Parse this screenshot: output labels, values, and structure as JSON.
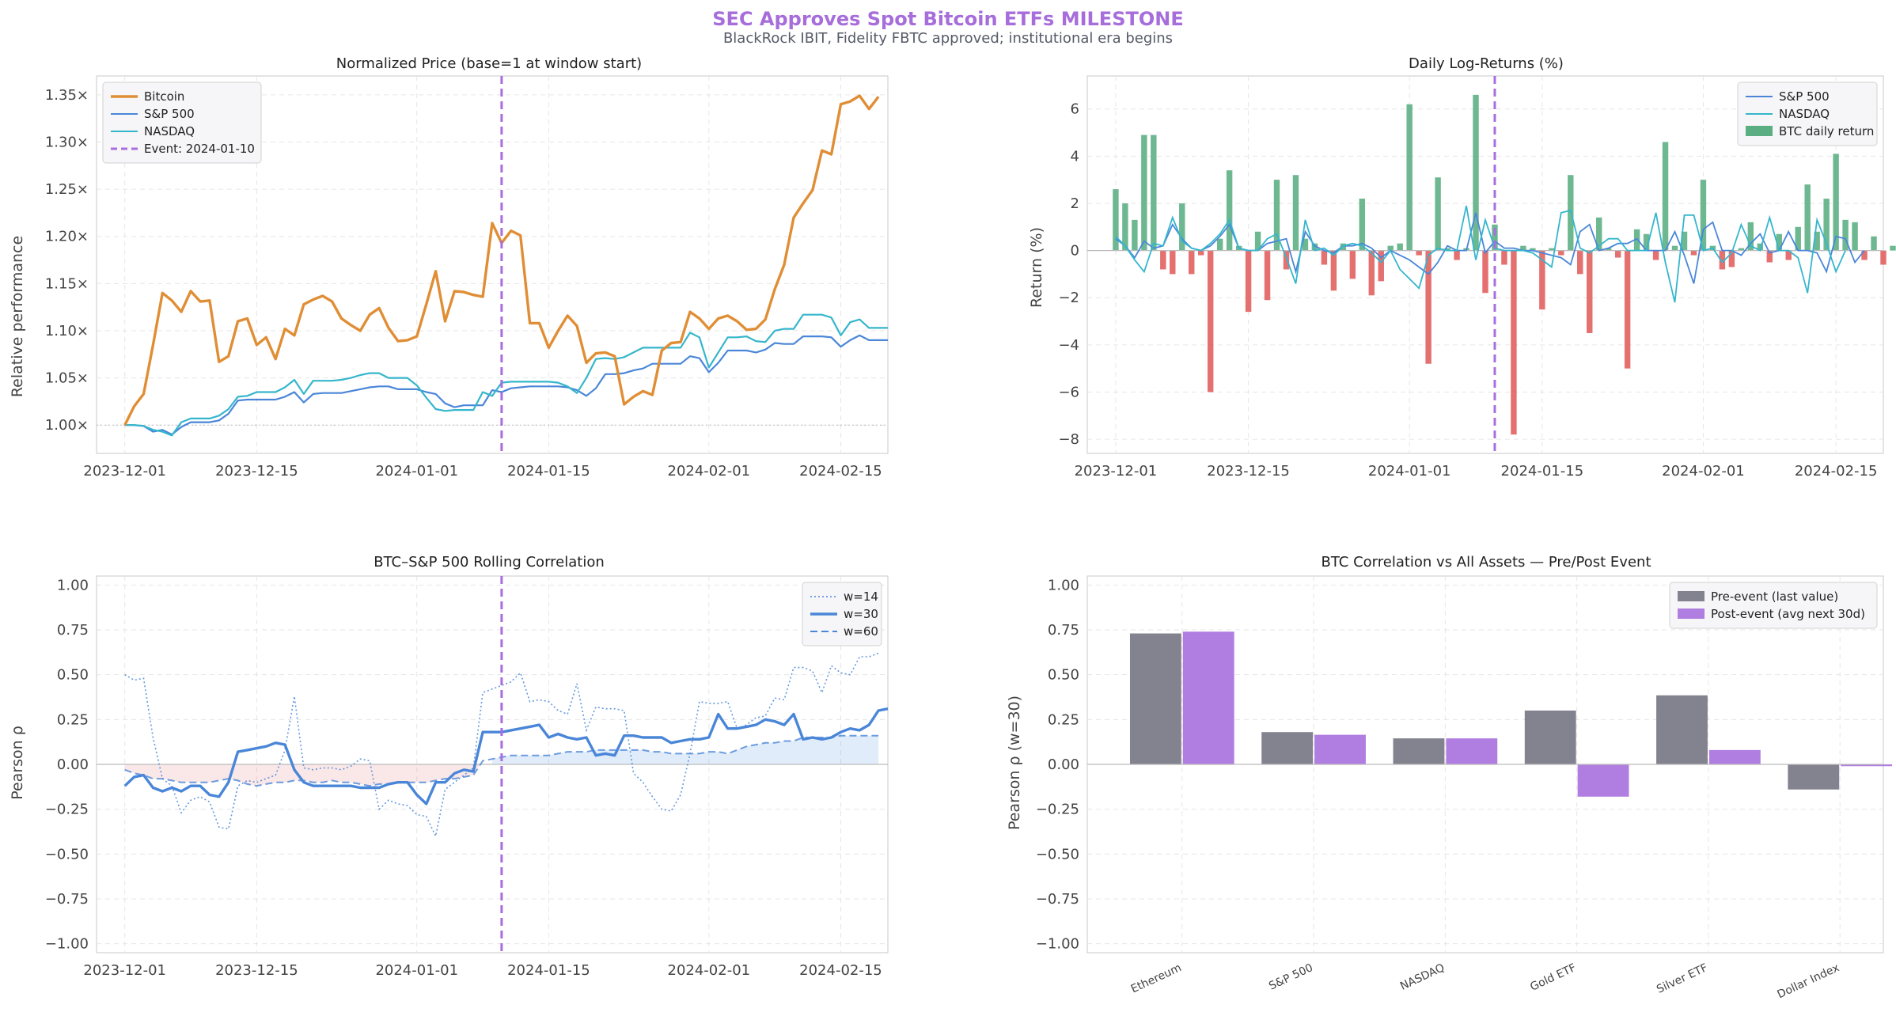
{
  "header": {
    "title": "SEC Approves Spot Bitcoin ETFs  MILESTONE",
    "subtitle": "BlackRock IBIT, Fidelity FBTC approved; institutional era begins"
  },
  "colors": {
    "bitcoin": "#e08e35",
    "sp500": "#4a86d8",
    "nasdaq": "#35b6cc",
    "event": "#a86ee0",
    "positive": "#5aae82",
    "negative": "#e05c5c",
    "pre": "#83828f",
    "post": "#b07ee0",
    "grid": "#e6e6e6",
    "zero": "#bbbbbb"
  },
  "chart_data": [
    {
      "type": "line",
      "title": "Normalized Price (base=1 at window start)",
      "xlabel": "",
      "ylabel": "Relative performance",
      "x_start": "2023-12-01",
      "x_ticks": [
        "2023-12-01",
        "2023-12-15",
        "2024-01-01",
        "2024-01-15",
        "2024-02-01",
        "2024-02-15"
      ],
      "y_ticks": [
        "1.00×",
        "1.05×",
        "1.10×",
        "1.15×",
        "1.20×",
        "1.25×",
        "1.30×",
        "1.35×"
      ],
      "ylim": [
        0.97,
        1.37
      ],
      "grid": true,
      "legend_position": "top-left",
      "event": {
        "date": "2024-01-10",
        "label": "Event: 2024-01-10"
      },
      "series": [
        {
          "name": "Bitcoin",
          "values": [
            1.0,
            1.02,
            1.033,
            1.085,
            1.14,
            1.132,
            1.12,
            1.142,
            1.131,
            1.132,
            1.067,
            1.073,
            1.11,
            1.113,
            1.085,
            1.093,
            1.07,
            1.102,
            1.095,
            1.128,
            1.133,
            1.137,
            1.131,
            1.113,
            1.106,
            1.1,
            1.117,
            1.124,
            1.103,
            1.089,
            1.09,
            1.094,
            1.128,
            1.163,
            1.11,
            1.142,
            1.141,
            1.138,
            1.136,
            1.214,
            1.193,
            1.206,
            1.201,
            1.108,
            1.108,
            1.082,
            1.1,
            1.116,
            1.105,
            1.066,
            1.076,
            1.077,
            1.073,
            1.022,
            1.03,
            1.036,
            1.032,
            1.079,
            1.087,
            1.088,
            1.12,
            1.113,
            1.102,
            1.113,
            1.116,
            1.11,
            1.101,
            1.102,
            1.112,
            1.144,
            1.17,
            1.22,
            1.235,
            1.249,
            1.291,
            1.287,
            1.34,
            1.343,
            1.349,
            1.335,
            1.348
          ]
        },
        {
          "name": "S&P 500",
          "values": [
            1.0,
            1.0,
            0.999,
            0.993,
            0.995,
            0.99,
            0.998,
            1.003,
            1.003,
            1.003,
            1.005,
            1.012,
            1.026,
            1.027,
            1.027,
            1.027,
            1.027,
            1.03,
            1.035,
            1.024,
            1.033,
            1.034,
            1.034,
            1.034,
            1.036,
            1.038,
            1.04,
            1.041,
            1.041,
            1.038,
            1.038,
            1.038,
            1.035,
            1.033,
            1.023,
            1.019,
            1.021,
            1.021,
            1.021,
            1.037,
            1.035,
            1.039,
            1.04,
            1.041,
            1.041,
            1.041,
            1.041,
            1.04,
            1.037,
            1.031,
            1.039,
            1.054,
            1.054,
            1.055,
            1.058,
            1.06,
            1.065,
            1.065,
            1.065,
            1.065,
            1.073,
            1.071,
            1.056,
            1.066,
            1.079,
            1.079,
            1.079,
            1.077,
            1.08,
            1.087,
            1.086,
            1.086,
            1.094,
            1.094,
            1.094,
            1.093,
            1.083,
            1.09,
            1.095,
            1.09,
            1.09,
            1.09
          ]
        },
        {
          "name": "NASDAQ",
          "values": [
            1.0,
            1.0,
            0.999,
            0.995,
            0.993,
            0.989,
            1.003,
            1.007,
            1.007,
            1.007,
            1.01,
            1.017,
            1.03,
            1.031,
            1.035,
            1.035,
            1.035,
            1.04,
            1.048,
            1.033,
            1.047,
            1.047,
            1.047,
            1.048,
            1.05,
            1.053,
            1.055,
            1.055,
            1.05,
            1.05,
            1.05,
            1.042,
            1.029,
            1.017,
            1.015,
            1.016,
            1.016,
            1.016,
            1.035,
            1.031,
            1.045,
            1.046,
            1.046,
            1.046,
            1.046,
            1.046,
            1.045,
            1.041,
            1.034,
            1.05,
            1.07,
            1.071,
            1.07,
            1.072,
            1.077,
            1.082,
            1.082,
            1.082,
            1.082,
            1.082,
            1.098,
            1.093,
            1.061,
            1.077,
            1.093,
            1.093,
            1.094,
            1.089,
            1.088,
            1.1,
            1.102,
            1.102,
            1.117,
            1.117,
            1.117,
            1.114,
            1.095,
            1.109,
            1.112,
            1.103,
            1.103,
            1.103
          ]
        }
      ]
    },
    {
      "type": "bar",
      "title": "Daily Log-Returns (%)",
      "xlabel": "",
      "ylabel": "Return (%)",
      "x_start": "2023-12-01",
      "x_ticks": [
        "2023-12-01",
        "2023-12-15",
        "2024-01-01",
        "2024-01-15",
        "2024-02-01",
        "2024-02-15"
      ],
      "y_ticks": [
        "−8",
        "−6",
        "−4",
        "−2",
        "0",
        "2",
        "4",
        "6"
      ],
      "ylim": [
        -8.6,
        7.4
      ],
      "grid": true,
      "legend_position": "top-right",
      "event": {
        "date": "2024-01-10"
      },
      "series": [
        {
          "name": "BTC daily return",
          "values": [
            2.6,
            2.0,
            1.3,
            4.9,
            4.9,
            -0.8,
            -1.0,
            2.0,
            -1.0,
            -0.2,
            -6.0,
            0.5,
            3.4,
            0.2,
            -2.6,
            0.8,
            -2.1,
            3.0,
            -0.8,
            3.2,
            0.5,
            0.3,
            -0.6,
            -1.7,
            0.3,
            -1.2,
            2.2,
            -1.9,
            -1.3,
            0.2,
            0.3,
            6.2,
            -0.2,
            -4.8,
            3.1,
            0.1,
            -0.4,
            0.1,
            6.6,
            -1.8,
            1.1,
            -0.6,
            -7.8,
            0.2,
            0.1,
            -2.5,
            0.1,
            -0.2,
            3.2,
            -1.0,
            -3.5,
            1.4,
            0.1,
            -0.3,
            -5.0,
            0.9,
            0.7,
            -0.4,
            4.6,
            0.2,
            0.8,
            -0.2,
            3.0,
            0.2,
            -0.8,
            -0.7,
            0.1,
            1.2,
            0.3,
            -0.5,
            0.7,
            -0.4,
            1.0,
            2.8,
            0.8,
            2.2,
            4.1,
            1.3,
            1.2,
            -0.4,
            0.6,
            -0.6,
            0.2,
            0.9
          ]
        },
        {
          "name": "S&P 500",
          "values": [
            0.5,
            0.2,
            -0.3,
            0.4,
            0.1,
            0.2,
            1.1,
            0.5,
            0.1,
            0.0,
            0.2,
            0.6,
            1.1,
            0.1,
            0.0,
            0.0,
            0.3,
            0.4,
            0.5,
            -0.9,
            0.8,
            0.2,
            0.0,
            -0.1,
            0.2,
            0.2,
            0.3,
            0.1,
            -0.3,
            0.0,
            -0.2,
            -0.4,
            -0.7,
            -1.0,
            -0.5,
            0.2,
            0.0,
            0.0,
            1.6,
            -0.1,
            0.4,
            0.1,
            0.1,
            0.0,
            0.0,
            -0.1,
            -0.2,
            -0.3,
            -0.6,
            0.8,
            1.1,
            0.0,
            0.1,
            0.3,
            0.3,
            0.5,
            0.0,
            0.0,
            0.0,
            0.8,
            -0.2,
            -1.4,
            0.9,
            1.2,
            0.0,
            0.0,
            -0.2,
            0.3,
            0.7,
            -0.1,
            0.0,
            0.8,
            0.0,
            0.0,
            -0.1,
            -0.9,
            0.6,
            0.5,
            -0.5,
            0.0
          ]
        },
        {
          "name": "NASDAQ",
          "values": [
            0.6,
            0.2,
            -0.4,
            -0.9,
            0.3,
            0.2,
            1.4,
            0.4,
            0.1,
            0.0,
            0.3,
            0.7,
            1.3,
            0.1,
            0.0,
            0.0,
            0.5,
            0.7,
            -0.3,
            -1.4,
            1.3,
            0.0,
            0.1,
            -0.2,
            0.2,
            0.3,
            0.2,
            -0.1,
            -0.5,
            0.0,
            -0.8,
            -1.2,
            -1.6,
            -0.2,
            0.1,
            0.0,
            0.0,
            1.9,
            -0.4,
            1.3,
            0.1,
            0.0,
            0.0,
            0.0,
            -0.1,
            -0.4,
            -0.7,
            1.6,
            1.7,
            0.1,
            -0.1,
            0.2,
            0.5,
            0.5,
            0.0,
            0.0,
            0.0,
            1.6,
            -0.5,
            -2.2,
            1.5,
            1.5,
            0.0,
            0.1,
            -0.5,
            -0.1,
            1.1,
            0.2,
            0.0,
            1.4,
            0.0,
            0.0,
            -0.3,
            -1.8,
            1.3,
            0.3,
            -0.9,
            0.0
          ]
        }
      ]
    },
    {
      "type": "line",
      "title": "BTC–S&P 500 Rolling Correlation",
      "xlabel": "",
      "ylabel": "Pearson ρ",
      "x_start": "2023-12-01",
      "x_ticks": [
        "2023-12-01",
        "2023-12-15",
        "2024-01-01",
        "2024-01-15",
        "2024-02-01",
        "2024-02-15"
      ],
      "y_ticks": [
        "−1.00",
        "−0.75",
        "−0.50",
        "−0.25",
        "0.00",
        "0.25",
        "0.50",
        "0.75",
        "1.00"
      ],
      "ylim": [
        -1.05,
        1.05
      ],
      "grid": true,
      "legend_position": "top-right",
      "event": {
        "date": "2024-01-10"
      },
      "series": [
        {
          "name": "w=14",
          "values": [
            0.5,
            0.47,
            0.48,
            0.15,
            -0.08,
            -0.12,
            -0.27,
            -0.2,
            -0.18,
            -0.21,
            -0.35,
            -0.36,
            -0.12,
            -0.09,
            -0.1,
            -0.08,
            -0.06,
            0.08,
            0.38,
            -0.02,
            -0.03,
            -0.02,
            -0.02,
            -0.03,
            -0.01,
            0.03,
            0.02,
            -0.25,
            -0.2,
            -0.22,
            -0.23,
            -0.28,
            -0.29,
            -0.4,
            -0.14,
            -0.1,
            -0.06,
            -0.02,
            0.4,
            0.42,
            0.44,
            0.46,
            0.51,
            0.35,
            0.36,
            0.35,
            0.3,
            0.28,
            0.45,
            0.19,
            0.32,
            0.31,
            0.31,
            0.3,
            -0.05,
            -0.1,
            -0.18,
            -0.25,
            -0.26,
            -0.17,
            0.06,
            0.35,
            0.34,
            0.34,
            0.35,
            0.2,
            0.22,
            0.26,
            0.27,
            0.37,
            0.36,
            0.54,
            0.54,
            0.52,
            0.4,
            0.55,
            0.51,
            0.5,
            0.6,
            0.6,
            0.62
          ]
        },
        {
          "name": "w=30",
          "values": [
            -0.12,
            -0.07,
            -0.06,
            -0.13,
            -0.15,
            -0.13,
            -0.15,
            -0.12,
            -0.12,
            -0.17,
            -0.18,
            -0.1,
            0.07,
            0.08,
            0.09,
            0.1,
            0.12,
            0.11,
            -0.03,
            -0.1,
            -0.12,
            -0.12,
            -0.12,
            -0.12,
            -0.12,
            -0.13,
            -0.13,
            -0.13,
            -0.11,
            -0.1,
            -0.1,
            -0.17,
            -0.22,
            -0.1,
            -0.1,
            -0.05,
            -0.03,
            -0.04,
            0.18,
            0.18,
            0.18,
            0.19,
            0.2,
            0.21,
            0.22,
            0.15,
            0.17,
            0.15,
            0.14,
            0.15,
            0.05,
            0.06,
            0.05,
            0.16,
            0.16,
            0.15,
            0.15,
            0.15,
            0.12,
            0.13,
            0.14,
            0.14,
            0.15,
            0.28,
            0.2,
            0.2,
            0.21,
            0.22,
            0.25,
            0.24,
            0.22,
            0.28,
            0.14,
            0.15,
            0.14,
            0.15,
            0.18,
            0.2,
            0.19,
            0.22,
            0.3,
            0.31
          ]
        },
        {
          "name": "w=60",
          "values": [
            -0.03,
            -0.05,
            -0.06,
            -0.08,
            -0.08,
            -0.09,
            -0.1,
            -0.1,
            -0.1,
            -0.1,
            -0.09,
            -0.08,
            -0.09,
            -0.11,
            -0.12,
            -0.11,
            -0.1,
            -0.1,
            -0.09,
            -0.09,
            -0.1,
            -0.1,
            -0.09,
            -0.1,
            -0.1,
            -0.11,
            -0.12,
            -0.11,
            -0.11,
            -0.1,
            -0.1,
            -0.1,
            -0.1,
            -0.09,
            -0.08,
            -0.08,
            -0.07,
            -0.06,
            0.02,
            0.03,
            0.04,
            0.05,
            0.05,
            0.05,
            0.05,
            0.05,
            0.06,
            0.07,
            0.07,
            0.07,
            0.08,
            0.08,
            0.08,
            0.08,
            0.08,
            0.08,
            0.07,
            0.07,
            0.06,
            0.06,
            0.06,
            0.06,
            0.07,
            0.07,
            0.06,
            0.08,
            0.1,
            0.11,
            0.12,
            0.12,
            0.13,
            0.13,
            0.15,
            0.15,
            0.15,
            0.15,
            0.16,
            0.16,
            0.16,
            0.16,
            0.16
          ]
        }
      ]
    },
    {
      "type": "bar",
      "title": "BTC Correlation vs All Assets — Pre/Post Event",
      "xlabel": "",
      "ylabel": "Pearson ρ (w=30)",
      "categories": [
        "Ethereum",
        "S&P 500",
        "NASDAQ",
        "Gold ETF",
        "Silver ETF",
        "Dollar Index"
      ],
      "y_ticks": [
        "−1.00",
        "−0.75",
        "−0.50",
        "−0.25",
        "0.00",
        "0.25",
        "0.50",
        "0.75",
        "1.00"
      ],
      "ylim": [
        -1.05,
        1.05
      ],
      "grid": true,
      "legend_position": "top-right",
      "series": [
        {
          "name": "Pre-event (last value)",
          "values": [
            0.73,
            0.18,
            0.145,
            0.3,
            0.385,
            -0.14
          ]
        },
        {
          "name": "Post-event (avg next 30d)",
          "values": [
            0.74,
            0.165,
            0.145,
            -0.18,
            0.08,
            -0.01
          ]
        }
      ]
    }
  ]
}
